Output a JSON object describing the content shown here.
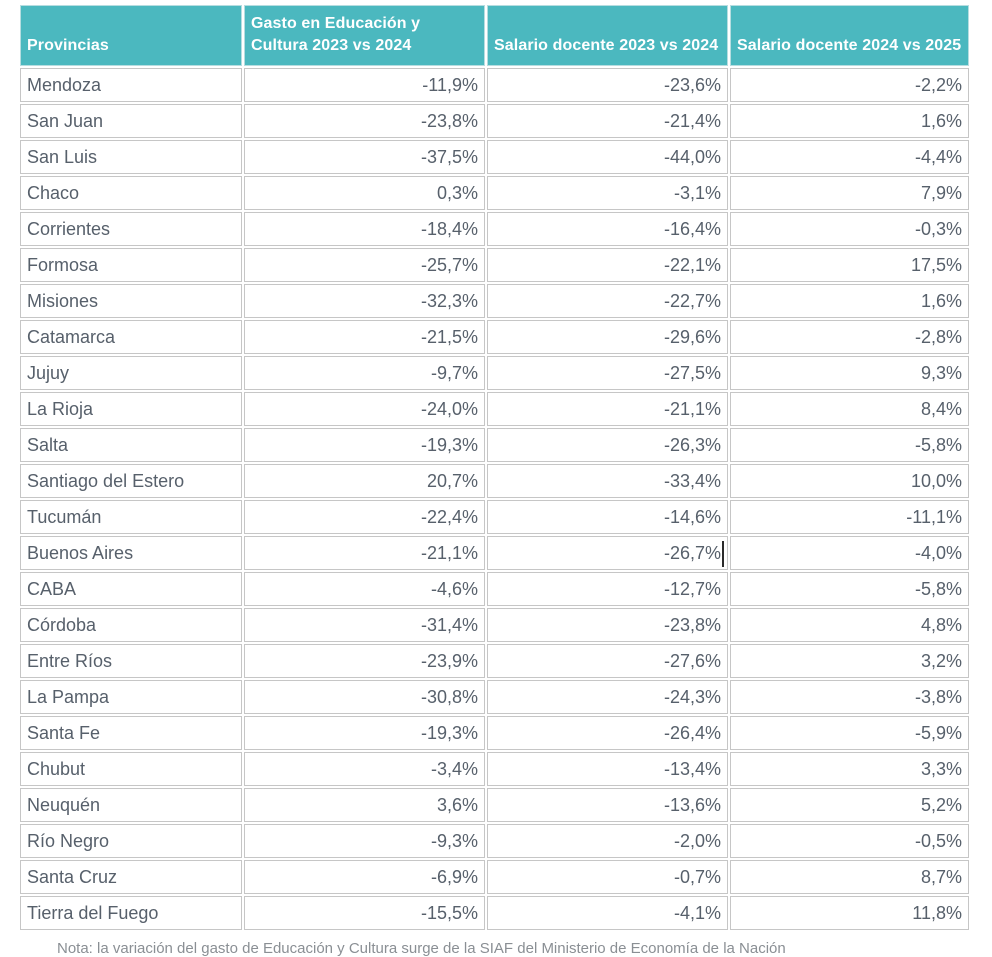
{
  "table": {
    "columns": [
      "Provincias",
      "Gasto en Educación y Cultura 2023 vs 2024",
      "Salario docente 2023 vs 2024",
      "Salario docente 2024 vs 2025"
    ],
    "rows": [
      [
        "Mendoza",
        "-11,9%",
        "-23,6%",
        "-2,2%"
      ],
      [
        "San Juan",
        "-23,8%",
        "-21,4%",
        "1,6%"
      ],
      [
        "San Luis",
        "-37,5%",
        "-44,0%",
        "-4,4%"
      ],
      [
        "Chaco",
        "0,3%",
        "-3,1%",
        "7,9%"
      ],
      [
        "Corrientes",
        "-18,4%",
        "-16,4%",
        "-0,3%"
      ],
      [
        "Formosa",
        "-25,7%",
        "-22,1%",
        "17,5%"
      ],
      [
        "Misiones",
        "-32,3%",
        "-22,7%",
        "1,6%"
      ],
      [
        "Catamarca",
        "-21,5%",
        "-29,6%",
        "-2,8%"
      ],
      [
        "Jujuy",
        "-9,7%",
        "-27,5%",
        "9,3%"
      ],
      [
        "La Rioja",
        "-24,0%",
        "-21,1%",
        "8,4%"
      ],
      [
        "Salta",
        "-19,3%",
        "-26,3%",
        "-5,8%"
      ],
      [
        "Santiago del Estero",
        "20,7%",
        "-33,4%",
        "10,0%"
      ],
      [
        "Tucumán",
        "-22,4%",
        "-14,6%",
        "-11,1%"
      ],
      [
        "Buenos Aires",
        "-21,1%",
        "-26,7%",
        "-4,0%"
      ],
      [
        "CABA",
        "-4,6%",
        "-12,7%",
        "-5,8%"
      ],
      [
        "Córdoba",
        "-31,4%",
        "-23,8%",
        "4,8%"
      ],
      [
        "Entre Ríos",
        "-23,9%",
        "-27,6%",
        "3,2%"
      ],
      [
        "La Pampa",
        "-30,8%",
        "-24,3%",
        "-3,8%"
      ],
      [
        "Santa Fe",
        "-19,3%",
        "-26,4%",
        "-5,9%"
      ],
      [
        "Chubut",
        "-3,4%",
        "-13,4%",
        "3,3%"
      ],
      [
        "Neuquén",
        "3,6%",
        "-13,6%",
        "5,2%"
      ],
      [
        "Río Negro",
        "-9,3%",
        "-2,0%",
        "-0,5%"
      ],
      [
        "Santa Cruz",
        "-6,9%",
        "-0,7%",
        "8,7%"
      ],
      [
        "Tierra del Fuego",
        "-15,5%",
        "-4,1%",
        "11,8%"
      ]
    ],
    "header_bg": "#4BB8BF",
    "header_text_color": "#FFFFFF",
    "cell_text_color": "#57606B",
    "border_color": "#C6C6C6"
  },
  "text_cursor": {
    "row": "Buenos Aires",
    "column": "Salario docente 2023 vs 2024",
    "after_value": "-26,7%"
  },
  "footnote_clipped_text": "Nota: la variación del gasto de Educación y Cultura surge de la SIAF del Ministerio de Economía de la Nación"
}
